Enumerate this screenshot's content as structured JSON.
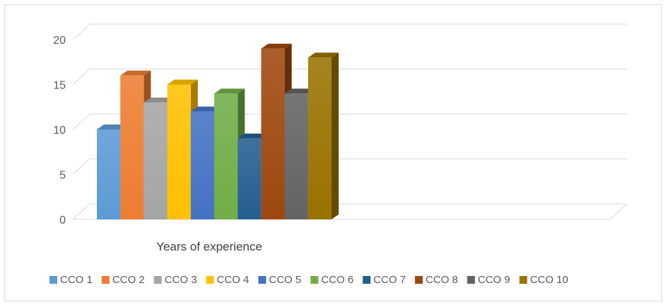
{
  "chart_data": {
    "type": "bar",
    "style": "3d-clustered-column",
    "categories": [
      "Years of experience"
    ],
    "series": [
      {
        "name": "CCO 1",
        "values": [
          10
        ],
        "color": "#5B9BD5"
      },
      {
        "name": "CCO 2",
        "values": [
          16
        ],
        "color": "#ED7D31"
      },
      {
        "name": "CCO 3",
        "values": [
          13
        ],
        "color": "#A5A5A5"
      },
      {
        "name": "CCO 4",
        "values": [
          15
        ],
        "color": "#FFC000"
      },
      {
        "name": "CCO 5",
        "values": [
          12
        ],
        "color": "#4472C4"
      },
      {
        "name": "CCO 6",
        "values": [
          14
        ],
        "color": "#70AD47"
      },
      {
        "name": "CCO 7",
        "values": [
          9
        ],
        "color": "#255E91"
      },
      {
        "name": "CCO 8",
        "values": [
          19
        ],
        "color": "#9E480E"
      },
      {
        "name": "CCO 9",
        "values": [
          14
        ],
        "color": "#636363"
      },
      {
        "name": "CCO 10",
        "values": [
          18
        ],
        "color": "#997300"
      }
    ],
    "y_ticks": [
      "0",
      "5",
      "10",
      "15",
      "20"
    ],
    "ylim": [
      0,
      20
    ],
    "grid": true,
    "legend_position": "bottom",
    "title": "",
    "xlabel": "",
    "ylabel": ""
  }
}
